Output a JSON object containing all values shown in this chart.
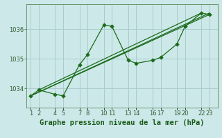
{
  "title": "Graphe pression niveau de la mer (hPa)",
  "bg_color": "#cce8e8",
  "grid_color": "#aacccc",
  "line_color": "#1a6b1a",
  "marker_color": "#1a6b1a",
  "series": [
    [
      1,
      1033.75
    ],
    [
      2,
      1033.95
    ],
    [
      4,
      1033.8
    ],
    [
      5,
      1033.75
    ],
    [
      7,
      1034.8
    ],
    [
      8,
      1035.15
    ],
    [
      10,
      1036.15
    ],
    [
      11,
      1036.1
    ],
    [
      13,
      1034.95
    ],
    [
      14,
      1034.85
    ],
    [
      16,
      1034.95
    ],
    [
      17,
      1035.05
    ],
    [
      19,
      1035.5
    ],
    [
      20,
      1036.1
    ],
    [
      22,
      1036.55
    ],
    [
      23,
      1036.5
    ]
  ],
  "trend_series": [
    [
      [
        1,
        1033.75
      ],
      [
        23,
        1036.55
      ]
    ],
    [
      [
        1,
        1033.75
      ],
      [
        23,
        1036.5
      ]
    ],
    [
      [
        2,
        1033.95
      ],
      [
        22,
        1036.55
      ]
    ]
  ],
  "ylim": [
    1033.35,
    1036.85
  ],
  "xlim": [
    0.5,
    24.0
  ],
  "yticks": [
    1034,
    1035,
    1036
  ],
  "xtick_positions": [
    1,
    2,
    4,
    5,
    7,
    8,
    10,
    11,
    13,
    14,
    16,
    17,
    19,
    20,
    22,
    23
  ],
  "xtick_labels": [
    "1",
    "2",
    "4",
    "5",
    "7",
    "8",
    "10",
    "11",
    "13",
    "14",
    "16",
    "17",
    "19",
    "20",
    "22",
    "23"
  ],
  "title_fontsize": 7.5,
  "tick_fontsize": 6.0,
  "spine_color": "#5a8a5a"
}
